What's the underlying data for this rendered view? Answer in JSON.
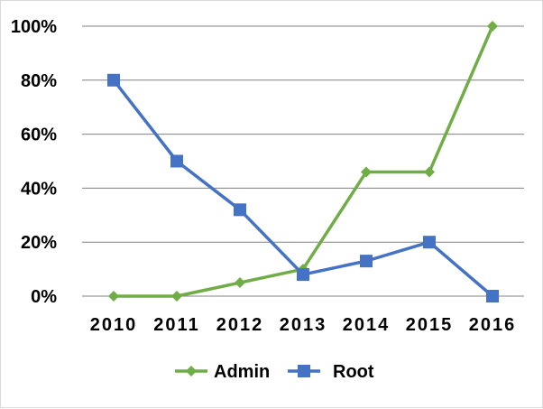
{
  "chart_data": {
    "type": "line",
    "categories": [
      "2010",
      "2011",
      "2012",
      "2013",
      "2014",
      "2015",
      "2016"
    ],
    "series": [
      {
        "name": "Admin",
        "values": [
          0,
          0,
          5,
          10,
          46,
          46,
          100
        ],
        "color": "#70ad47",
        "marker": "diamond"
      },
      {
        "name": "Root",
        "values": [
          80,
          50,
          32,
          8,
          13,
          20,
          0
        ],
        "color": "#4472c4",
        "marker": "square"
      }
    ],
    "y_ticks": [
      "0%",
      "20%",
      "40%",
      "60%",
      "80%",
      "100%"
    ],
    "ylim": [
      0,
      100
    ],
    "y_unit": "%",
    "grid": true,
    "legend_position": "bottom",
    "gridline_color": "#808080"
  }
}
